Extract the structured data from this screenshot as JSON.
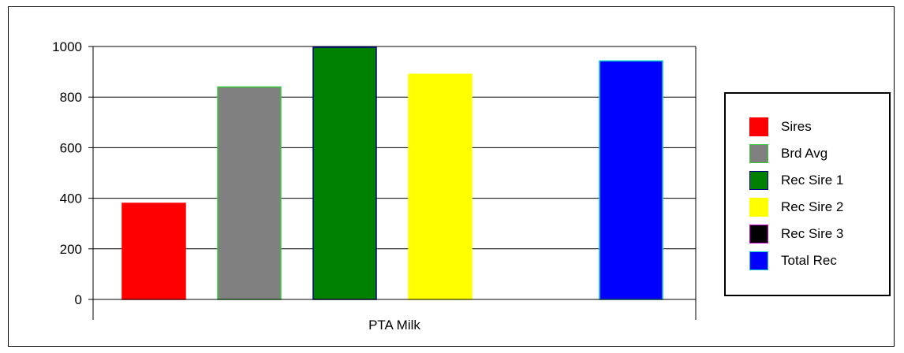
{
  "chart_data": {
    "type": "bar",
    "categories": [
      "PTA Milk"
    ],
    "series": [
      {
        "name": "Sires",
        "values": [
          380
        ],
        "color": "#ff0000",
        "border": "#ff0000"
      },
      {
        "name": "Brd Avg",
        "values": [
          840
        ],
        "color": "#808080",
        "border": "#33cc33"
      },
      {
        "name": "Rec Sire 1",
        "values": [
          997
        ],
        "color": "#008000",
        "border": "#000080"
      },
      {
        "name": "Rec Sire 2",
        "values": [
          890
        ],
        "color": "#ffff00",
        "border": "#ffff00"
      },
      {
        "name": "Rec Sire 3",
        "values": [
          0
        ],
        "color": "#000000",
        "border": "#cc00cc"
      },
      {
        "name": "Total Rec",
        "values": [
          943
        ],
        "color": "#0000ff",
        "border": "#00cccc"
      }
    ],
    "title": "",
    "xlabel": "",
    "ylabel": "",
    "ylim": [
      0,
      1000
    ],
    "yticks": [
      0,
      200,
      400,
      600,
      800,
      1000
    ],
    "grid": true,
    "legend_position": "right"
  }
}
